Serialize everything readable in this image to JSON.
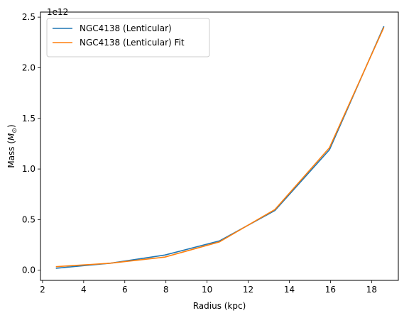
{
  "chart_data": {
    "type": "line",
    "title": "",
    "xlabel": "Radius (kpc)",
    "ylabel_prefix": "Mass (",
    "ylabel_symbol": "M",
    "ylabel_subscript": "⊙",
    "ylabel_suffix": ")",
    "y_offset_text": "1e12",
    "xlim": [
      1.9,
      19.3
    ],
    "ylim": [
      -0.1,
      2.55
    ],
    "xticks": [
      2,
      4,
      6,
      8,
      10,
      12,
      14,
      16,
      18
    ],
    "xtick_labels": [
      "2",
      "4",
      "6",
      "8",
      "10",
      "12",
      "14",
      "16",
      "18"
    ],
    "yticks": [
      0.0,
      0.5,
      1.0,
      1.5,
      2.0,
      2.5
    ],
    "ytick_labels": [
      "0.0",
      "0.5",
      "1.0",
      "1.5",
      "2.0",
      "2.5"
    ],
    "grid": false,
    "legend_placement": "upper-left",
    "series": [
      {
        "name": "NGC4138 (Lenticular)",
        "color": "#1f77b4",
        "x": [
          2.65,
          5.3,
          7.95,
          10.6,
          13.3,
          15.95,
          18.6
        ],
        "y": [
          0.02,
          0.07,
          0.15,
          0.29,
          0.59,
          1.19,
          2.41
        ]
      },
      {
        "name": "NGC4138 (Lenticular) Fit",
        "color": "#ff7f0e",
        "x": [
          2.65,
          5.3,
          7.95,
          10.6,
          13.3,
          15.95,
          18.6
        ],
        "y": [
          0.035,
          0.07,
          0.13,
          0.28,
          0.6,
          1.21,
          2.4
        ]
      }
    ]
  }
}
